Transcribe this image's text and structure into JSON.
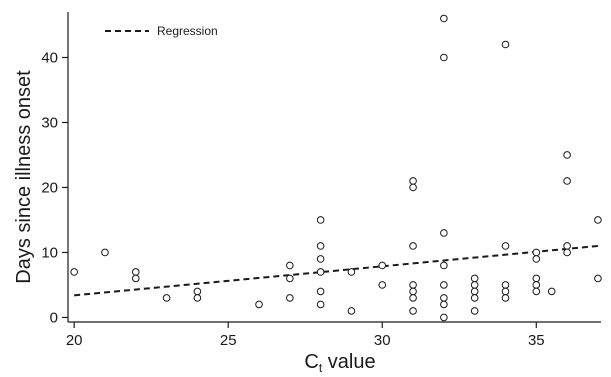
{
  "chart_data": {
    "type": "scatter",
    "title": "",
    "xlabel_main": "C",
    "xlabel_sub": "t",
    "xlabel_rest": " value",
    "ylabel": "Days since illness onset",
    "xlim": [
      19.8,
      37.1
    ],
    "ylim": [
      -0.7,
      47
    ],
    "xticks": [
      20,
      25,
      30,
      35
    ],
    "yticks": [
      0,
      10,
      20,
      30,
      40
    ],
    "grid": false,
    "legend_position": "top-left",
    "legend": [
      {
        "label": "Regression",
        "style": "dashed"
      }
    ],
    "points": [
      [
        20,
        7
      ],
      [
        21,
        10
      ],
      [
        22,
        7
      ],
      [
        22,
        6
      ],
      [
        23,
        3
      ],
      [
        24,
        4
      ],
      [
        24,
        3
      ],
      [
        26,
        2
      ],
      [
        27,
        8
      ],
      [
        27,
        6
      ],
      [
        27,
        3
      ],
      [
        28,
        15
      ],
      [
        28,
        11
      ],
      [
        28,
        9
      ],
      [
        28,
        7
      ],
      [
        28,
        4
      ],
      [
        28,
        2
      ],
      [
        29,
        7
      ],
      [
        29,
        1
      ],
      [
        30,
        8
      ],
      [
        30,
        5
      ],
      [
        31,
        21
      ],
      [
        31,
        20
      ],
      [
        31,
        11
      ],
      [
        31,
        5
      ],
      [
        31,
        4
      ],
      [
        31,
        3
      ],
      [
        31,
        1
      ],
      [
        32,
        46
      ],
      [
        32,
        40
      ],
      [
        32,
        13
      ],
      [
        32,
        8
      ],
      [
        32,
        5
      ],
      [
        32,
        3
      ],
      [
        32,
        2
      ],
      [
        32,
        0
      ],
      [
        33,
        6
      ],
      [
        33,
        5
      ],
      [
        33,
        4
      ],
      [
        33,
        3
      ],
      [
        33,
        1
      ],
      [
        34,
        42
      ],
      [
        34,
        11
      ],
      [
        34,
        5
      ],
      [
        34,
        4
      ],
      [
        34,
        3
      ],
      [
        35,
        10
      ],
      [
        35,
        9
      ],
      [
        35,
        6
      ],
      [
        35,
        5
      ],
      [
        35,
        4
      ],
      [
        35.5,
        4
      ],
      [
        36,
        25
      ],
      [
        36,
        21
      ],
      [
        36,
        11
      ],
      [
        36,
        10
      ],
      [
        37,
        15
      ],
      [
        37,
        6
      ]
    ],
    "regression": {
      "x": [
        20,
        37
      ],
      "y": [
        3.4,
        11
      ]
    },
    "colors": {
      "axis": "#1a1a1a",
      "marker": "#1a1a1a",
      "line": "#1a1a1a"
    }
  }
}
